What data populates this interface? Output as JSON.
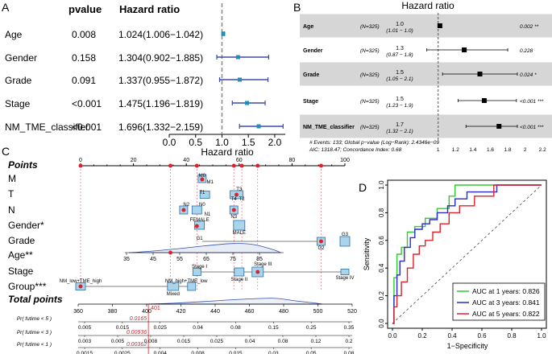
{
  "panel_labels": [
    "A",
    "B",
    "C",
    "D"
  ],
  "chart_data": [
    {
      "type": "forest",
      "panel": "A",
      "header_pvalue": "pvalue",
      "header_hr": "Hazard ratio",
      "xlabel": "Hazard ratio",
      "ticks": [
        "0.0",
        "0.5",
        "1.0",
        "1.5",
        "2.0"
      ],
      "xlim": [
        0.0,
        2.2
      ],
      "reference": 1.0,
      "rows": [
        {
          "label": "Age",
          "pvalue": "0.008",
          "hr_text": "1.024(1.006−1.042)",
          "hr": 1.024,
          "lo": 1.006,
          "hi": 1.042
        },
        {
          "label": "Gender",
          "pvalue": "0.158",
          "hr_text": "1.304(0.902−1.885)",
          "hr": 1.304,
          "lo": 0.902,
          "hi": 1.885
        },
        {
          "label": "Grade",
          "pvalue": "0.091",
          "hr_text": "1.337(0.955−1.872)",
          "hr": 1.337,
          "lo": 0.955,
          "hi": 1.872
        },
        {
          "label": "Stage",
          "pvalue": "<0.001",
          "hr_text": "1.475(1.196−1.819)",
          "hr": 1.475,
          "lo": 1.196,
          "hi": 1.819
        },
        {
          "label": "NM_TME_classifier",
          "pvalue": "<0.001",
          "hr_text": "1.696(1.332−2.159)",
          "hr": 1.696,
          "lo": 1.332,
          "hi": 2.159
        }
      ],
      "colors": {
        "point": "#1f8fb8",
        "ci": "#3a4ba8",
        "reference": "#888888"
      }
    },
    {
      "type": "forest",
      "panel": "B",
      "title": "Hazard ratio",
      "ticks": [
        "1",
        "1.2",
        "1.4",
        "1.6",
        "1.8",
        "2",
        "2.2"
      ],
      "tick_values": [
        1,
        1.2,
        1.4,
        1.6,
        1.8,
        2,
        2.2
      ],
      "xlim": [
        0.78,
        2.3
      ],
      "footer_line1": "# Events: 133; Global p−value (Log−Rank): 2.4346e−09",
      "footer_line2": "AIC: 1318.47; Concordance Index: 0.68",
      "rows": [
        {
          "label": "Age",
          "n": "(N=325)",
          "hr_text": "1.0",
          "ci_text": "(1.01 − 1.0)",
          "p": "0.002 **",
          "hr": 1.02,
          "lo": 1.01,
          "hi": 1.04,
          "shaded": true
        },
        {
          "label": "Gender",
          "n": "(N=325)",
          "hr_text": "1.3",
          "ci_text": "(0.87 − 1.8)",
          "p": "0.228",
          "hr": 1.3,
          "lo": 0.87,
          "hi": 1.8,
          "shaded": false
        },
        {
          "label": "Grade",
          "n": "(N=325)",
          "hr_text": "1.5",
          "ci_text": "(1.05 − 2.1)",
          "p": "0.024 *",
          "hr": 1.48,
          "lo": 1.05,
          "hi": 2.1,
          "shaded": true
        },
        {
          "label": "Stage",
          "n": "(N=325)",
          "hr_text": "1.5",
          "ci_text": "(1.23 − 1.9)",
          "p": "<0.001 ***",
          "hr": 1.53,
          "lo": 1.23,
          "hi": 1.9,
          "shaded": false
        },
        {
          "label": "NM_TME_classifier",
          "n": "(N=325)",
          "hr_text": "1.7",
          "ci_text": "(1.32 − 2.1)",
          "p": "<0.001 ***",
          "hr": 1.7,
          "lo": 1.32,
          "hi": 2.15,
          "shaded": true
        }
      ]
    },
    {
      "type": "nomogram",
      "panel": "C",
      "rows": [
        {
          "label": "Points",
          "italic": true,
          "ticks": [
            "0",
            "20",
            "40",
            "60",
            "80",
            "100"
          ],
          "tick_values": [
            0,
            20,
            40,
            60,
            80,
            100
          ],
          "range": [
            0,
            100
          ]
        },
        {
          "label": "M",
          "levels": [
            "M0",
            "M1"
          ]
        },
        {
          "label": "T",
          "levels": [
            "T1",
            "T3",
            "T4",
            "T2"
          ]
        },
        {
          "label": "N",
          "levels": [
            "N2",
            "N0",
            "N1",
            "N3"
          ]
        },
        {
          "label": "Gender*",
          "levels": [
            "FEMALE",
            "MALE"
          ]
        },
        {
          "label": "Grade",
          "levels": [
            "G1",
            "G2",
            "G3"
          ]
        },
        {
          "label": "Age**",
          "ticks": [
            "35",
            "45",
            "55",
            "65",
            "75",
            "85"
          ]
        },
        {
          "label": "Stage",
          "levels": [
            "Stage I",
            "Stage II",
            "Stage III",
            "Stage IV"
          ]
        },
        {
          "label": "Group***",
          "levels": [
            "NM_low+TME_high",
            "NM_high+TME_low",
            "Mixed"
          ]
        },
        {
          "label": "Total points",
          "italic": true,
          "ticks": [
            "360",
            "380",
            "400",
            "420",
            "440",
            "460",
            "480",
            "500",
            "520"
          ],
          "tick_values": [
            360,
            380,
            400,
            420,
            440,
            460,
            480,
            500,
            520
          ],
          "range": [
            360,
            520
          ],
          "marker": "401",
          "marker_value": 401
        }
      ],
      "probability_rows": [
        {
          "label": "Pr( futime < 5 )",
          "ticks": [
            "0.005",
            "0.015",
            "0.025",
            "0.04",
            "0.08",
            "0.15",
            "0.25",
            "0.35"
          ],
          "highlight": "0.0165"
        },
        {
          "label": "Pr( futime < 3 )",
          "ticks": [
            "0.003",
            "0.005",
            "0.008",
            "0.015",
            "0.025",
            "0.04",
            "0.08",
            "0.12",
            "0.2"
          ],
          "highlight": "0.00936"
        },
        {
          "label": "Pr( futime < 1 )",
          "ticks": [
            "0.0015",
            "0.0025",
            "0.004",
            "0.008",
            "0.015",
            "0.03",
            "0.05",
            "0.08"
          ],
          "highlight": "0.00362"
        }
      ],
      "colors": {
        "marker": "#e0202a",
        "box_fill": "#a8d4ec",
        "box_stroke": "#2a6fa8",
        "guide": "#e06070",
        "density": "#3050b0"
      }
    },
    {
      "type": "line",
      "panel": "D",
      "xlabel": "1−Specificity",
      "ylabel": "Sensitivity",
      "xticks": [
        "0.0",
        "0.2",
        "0.4",
        "0.6",
        "0.8",
        "1.0"
      ],
      "yticks": [
        "0.0",
        "0.2",
        "0.4",
        "0.6",
        "0.8",
        "1.0"
      ],
      "xlim": [
        0,
        1
      ],
      "ylim": [
        0,
        1
      ],
      "series": [
        {
          "name": "AUC at 1 years: 0.826",
          "color": "#2ecc2e",
          "x": [
            0,
            0.01,
            0.01,
            0.03,
            0.03,
            0.06,
            0.06,
            0.1,
            0.1,
            0.15,
            0.15,
            0.22,
            0.22,
            0.3,
            0.3,
            0.38,
            0.38,
            0.42,
            0.42,
            0.55,
            0.55,
            1.0
          ],
          "y": [
            0,
            0,
            0.33,
            0.33,
            0.5,
            0.5,
            0.55,
            0.55,
            0.66,
            0.66,
            0.7,
            0.7,
            0.76,
            0.76,
            0.83,
            0.83,
            0.92,
            0.92,
            1.0,
            1.0,
            1.0,
            1.0
          ]
        },
        {
          "name": "AUC at 3 years: 0.841",
          "color": "#2a2ad0",
          "x": [
            0,
            0.01,
            0.01,
            0.03,
            0.03,
            0.05,
            0.05,
            0.08,
            0.08,
            0.12,
            0.12,
            0.15,
            0.15,
            0.2,
            0.2,
            0.25,
            0.25,
            0.3,
            0.3,
            0.37,
            0.37,
            0.42,
            0.42,
            0.5,
            0.5,
            0.7,
            0.7,
            1.0
          ],
          "y": [
            0,
            0,
            0.2,
            0.2,
            0.35,
            0.35,
            0.45,
            0.45,
            0.55,
            0.55,
            0.62,
            0.62,
            0.68,
            0.68,
            0.72,
            0.72,
            0.75,
            0.75,
            0.8,
            0.8,
            0.85,
            0.85,
            0.9,
            0.9,
            0.95,
            0.95,
            1.0,
            1.0
          ]
        },
        {
          "name": "AUC at 5 years: 0.822",
          "color": "#e0202a",
          "x": [
            0,
            0.01,
            0.01,
            0.03,
            0.03,
            0.06,
            0.06,
            0.1,
            0.1,
            0.14,
            0.14,
            0.18,
            0.18,
            0.22,
            0.22,
            0.27,
            0.27,
            0.32,
            0.32,
            0.38,
            0.38,
            0.45,
            0.45,
            0.55,
            0.55,
            0.68,
            0.68,
            1.0
          ],
          "y": [
            0,
            0,
            0.12,
            0.12,
            0.2,
            0.2,
            0.3,
            0.3,
            0.4,
            0.4,
            0.5,
            0.5,
            0.56,
            0.56,
            0.6,
            0.6,
            0.66,
            0.66,
            0.72,
            0.72,
            0.8,
            0.8,
            0.85,
            0.85,
            0.92,
            0.92,
            1.0,
            1.0
          ]
        }
      ]
    }
  ]
}
